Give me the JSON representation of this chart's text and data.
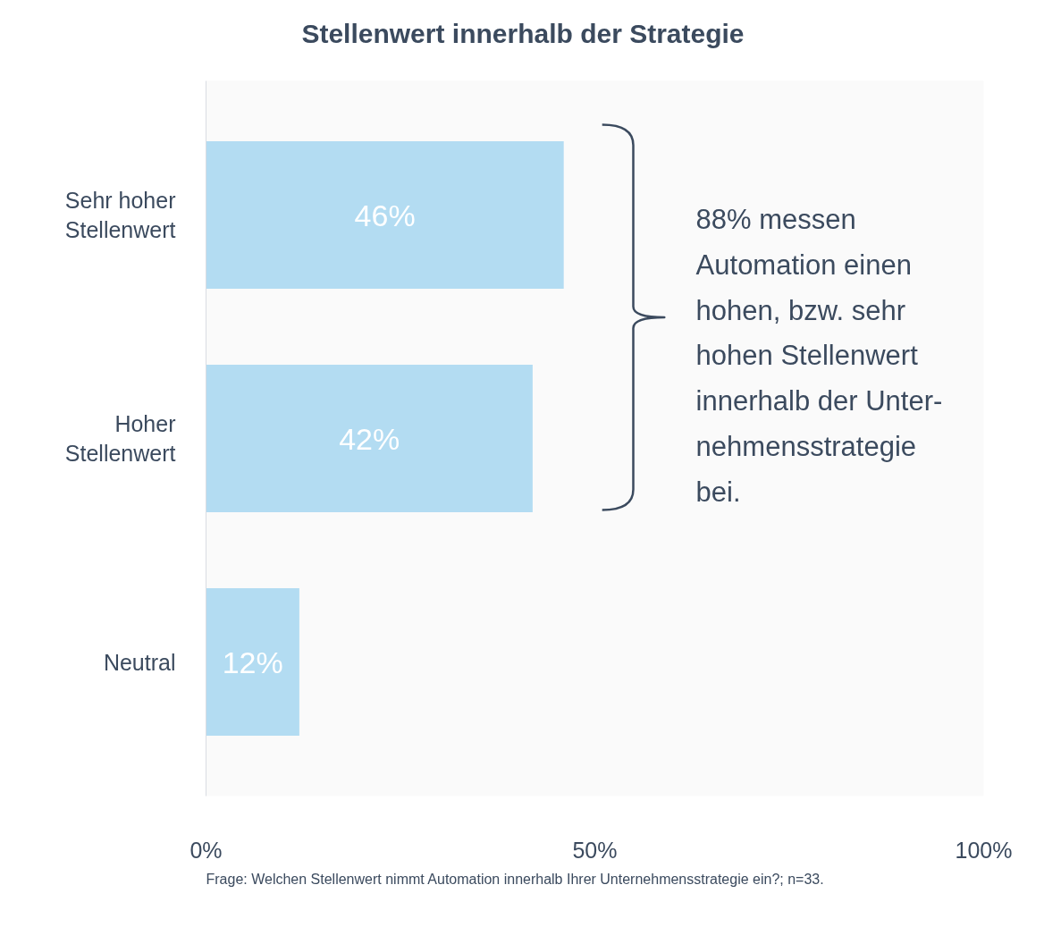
{
  "chart_data": {
    "type": "bar",
    "orientation": "horizontal",
    "title": "Stellenwert innerhalb der Strategie",
    "categories": [
      "Sehr hoher\nStellenwert",
      "Hoher\nStellenwert",
      "Neutral"
    ],
    "values": [
      46,
      42,
      12
    ],
    "color": "#b3dcf2",
    "value_labels": [
      "46%",
      "42%",
      "12%"
    ],
    "xlim": [
      0,
      100
    ],
    "xticks": [
      {
        "value": 0,
        "label": "0%"
      },
      {
        "value": 50,
        "label": "50%"
      },
      {
        "value": 100,
        "label": "100%"
      }
    ],
    "grid": false,
    "annotations": [
      "88% messen\nAutomation einen\nhohen, bzw. sehr\nhohen Stellenwert\ninnerhalb der Unter-\nnehmensstrategie\nbei.",
      "Frage: Welchen Stellenwert nimmt Automation innerhalb Ihrer Unternehmensstrategie ein?; n=33."
    ]
  }
}
